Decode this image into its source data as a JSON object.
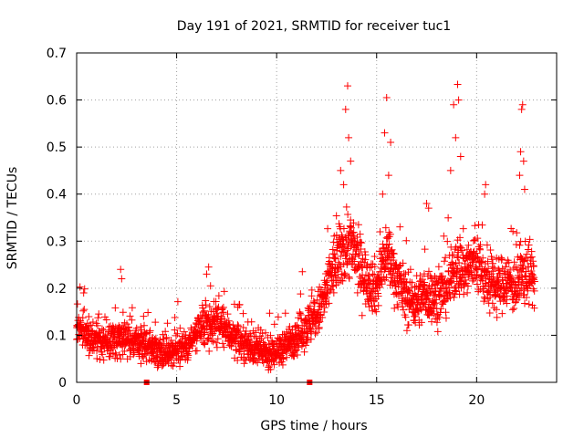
{
  "chart_data": {
    "type": "scatter",
    "title": "Day 191 of 2021, SRMTID for receiver tuc1",
    "xlabel": "GPS time / hours",
    "ylabel": "SRMTID / TECUs",
    "xlim": [
      0,
      24
    ],
    "ylim": [
      0,
      0.7
    ],
    "xticks": [
      0,
      5,
      10,
      15,
      20
    ],
    "yticks": [
      0,
      0.1,
      0.2,
      0.3,
      0.4,
      0.5,
      0.6,
      0.7
    ],
    "xtick_labels": [
      "0",
      "5",
      "10",
      "15",
      "20"
    ],
    "ytick_labels": [
      "0",
      "0.1",
      "0.2",
      "0.3",
      "0.4",
      "0.5",
      "0.6",
      "0.7"
    ],
    "grid": true,
    "marker": "plus",
    "color": "#ff0000",
    "series": [
      {
        "name": "SRMTID",
        "trend": {
          "x": [
            0,
            0.3,
            0.6,
            1.0,
            1.5,
            2.0,
            2.3,
            2.7,
            3.2,
            3.6,
            4.0,
            4.5,
            5.0,
            5.5,
            6.0,
            6.5,
            7.0,
            7.5,
            8.0,
            8.5,
            9.0,
            9.5,
            10.0,
            10.5,
            11.0,
            11.5,
            12.0,
            12.4,
            12.8,
            13.2,
            13.6,
            14.0,
            14.5,
            15.0,
            15.5,
            16.0,
            16.5,
            17.0,
            17.5,
            18.0,
            18.5,
            19.0,
            19.5,
            20.0,
            20.5,
            21.0,
            21.5,
            22.0,
            22.5,
            22.9
          ],
          "y": [
            0.12,
            0.11,
            0.1,
            0.09,
            0.085,
            0.09,
            0.1,
            0.09,
            0.08,
            0.08,
            0.07,
            0.065,
            0.07,
            0.08,
            0.1,
            0.12,
            0.13,
            0.11,
            0.09,
            0.08,
            0.07,
            0.06,
            0.065,
            0.08,
            0.1,
            0.12,
            0.14,
            0.18,
            0.24,
            0.27,
            0.3,
            0.26,
            0.22,
            0.2,
            0.28,
            0.22,
            0.18,
            0.17,
            0.19,
            0.18,
            0.2,
            0.25,
            0.24,
            0.26,
            0.21,
            0.2,
            0.22,
            0.2,
            0.24,
            0.22
          ],
          "spread": [
            0.03,
            0.035,
            0.03,
            0.03,
            0.03,
            0.035,
            0.03,
            0.03,
            0.03,
            0.03,
            0.03,
            0.03,
            0.03,
            0.03,
            0.035,
            0.04,
            0.04,
            0.035,
            0.03,
            0.03,
            0.03,
            0.03,
            0.03,
            0.03,
            0.035,
            0.04,
            0.04,
            0.05,
            0.06,
            0.06,
            0.07,
            0.06,
            0.05,
            0.05,
            0.06,
            0.05,
            0.05,
            0.05,
            0.05,
            0.05,
            0.05,
            0.06,
            0.06,
            0.06,
            0.05,
            0.05,
            0.05,
            0.05,
            0.06,
            0.05
          ]
        },
        "spikes": [
          {
            "x": 0.35,
            "y": 0.19
          },
          {
            "x": 2.2,
            "y": 0.24
          },
          {
            "x": 2.25,
            "y": 0.22
          },
          {
            "x": 6.6,
            "y": 0.245
          },
          {
            "x": 6.5,
            "y": 0.23
          },
          {
            "x": 13.45,
            "y": 0.58
          },
          {
            "x": 13.55,
            "y": 0.63
          },
          {
            "x": 13.6,
            "y": 0.52
          },
          {
            "x": 13.2,
            "y": 0.45
          },
          {
            "x": 13.7,
            "y": 0.47
          },
          {
            "x": 13.35,
            "y": 0.42
          },
          {
            "x": 15.5,
            "y": 0.605
          },
          {
            "x": 15.4,
            "y": 0.53
          },
          {
            "x": 15.7,
            "y": 0.51
          },
          {
            "x": 15.6,
            "y": 0.44
          },
          {
            "x": 15.3,
            "y": 0.4
          },
          {
            "x": 17.5,
            "y": 0.38
          },
          {
            "x": 17.6,
            "y": 0.37
          },
          {
            "x": 18.85,
            "y": 0.59
          },
          {
            "x": 19.05,
            "y": 0.633
          },
          {
            "x": 19.1,
            "y": 0.6
          },
          {
            "x": 18.95,
            "y": 0.52
          },
          {
            "x": 19.2,
            "y": 0.48
          },
          {
            "x": 18.7,
            "y": 0.45
          },
          {
            "x": 20.45,
            "y": 0.42
          },
          {
            "x": 20.4,
            "y": 0.4
          },
          {
            "x": 22.3,
            "y": 0.59
          },
          {
            "x": 22.25,
            "y": 0.58
          },
          {
            "x": 22.2,
            "y": 0.49
          },
          {
            "x": 22.35,
            "y": 0.47
          },
          {
            "x": 22.15,
            "y": 0.44
          },
          {
            "x": 22.4,
            "y": 0.41
          }
        ],
        "count": 2300,
        "x_range": [
          0,
          22.9
        ]
      }
    ],
    "gap_markers": [
      {
        "x": 3.5,
        "y": 0
      },
      {
        "x": 11.65,
        "y": 0
      }
    ]
  }
}
